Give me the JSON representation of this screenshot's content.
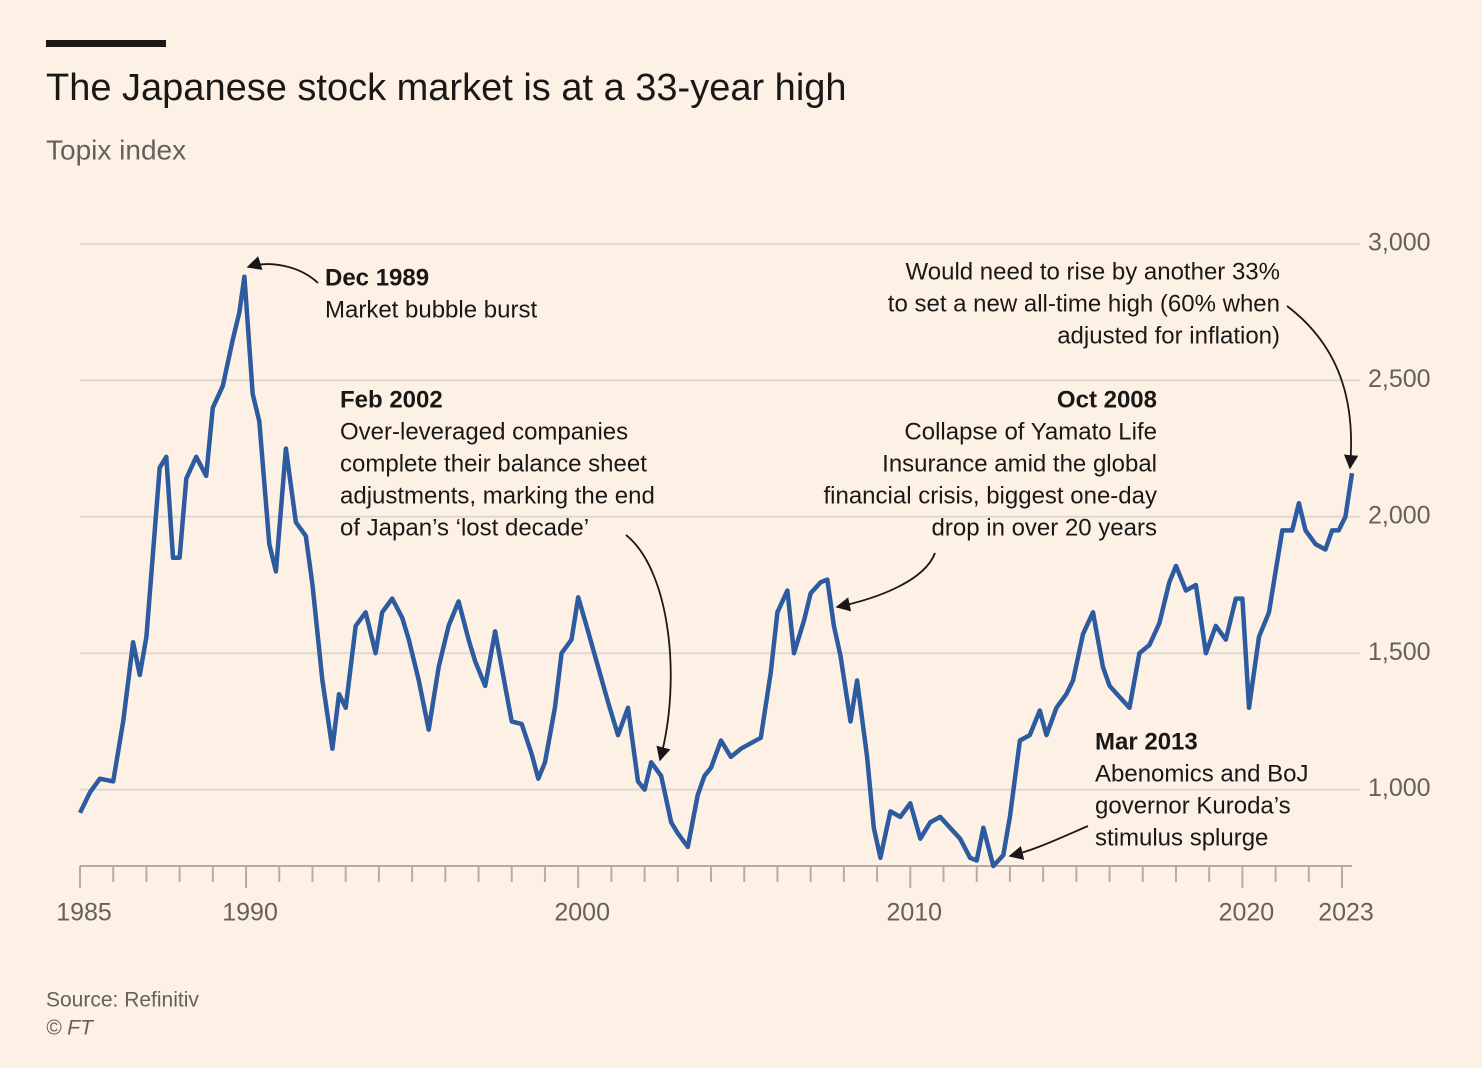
{
  "chart_data": {
    "type": "line",
    "title": "The Japanese stock market is at a 33-year high",
    "subtitle": "Topix index",
    "source": "Source: Refinitiv",
    "credit": "© FT",
    "xlim": [
      1985,
      2023.3
    ],
    "ylim": [
      720,
      3000
    ],
    "xticks": [
      1985,
      1990,
      2000,
      2010,
      2020,
      2023
    ],
    "xminorticks": [
      1986,
      1987,
      1988,
      1989,
      1991,
      1992,
      1993,
      1994,
      1995,
      1996,
      1997,
      1998,
      1999,
      2001,
      2002,
      2003,
      2004,
      2005,
      2006,
      2007,
      2008,
      2009,
      2011,
      2012,
      2013,
      2014,
      2015,
      2016,
      2017,
      2018,
      2019,
      2021,
      2022
    ],
    "yticks": [
      {
        "value": 1000,
        "label": "1,000"
      },
      {
        "value": 1500,
        "label": "1,500"
      },
      {
        "value": 2000,
        "label": "2,000"
      },
      {
        "value": 2500,
        "label": "2,500"
      },
      {
        "value": 3000,
        "label": "3,000"
      }
    ],
    "grid": true,
    "series": [
      {
        "name": "Topix",
        "color": "#2d5b9f",
        "x": [
          1985.0,
          1985.3,
          1985.6,
          1986.0,
          1986.3,
          1986.6,
          1986.8,
          1987.0,
          1987.4,
          1987.6,
          1987.8,
          1988.0,
          1988.2,
          1988.5,
          1988.8,
          1989.0,
          1989.3,
          1989.6,
          1989.8,
          1989.95,
          1990.2,
          1990.4,
          1990.7,
          1990.9,
          1991.2,
          1991.5,
          1991.8,
          1992.0,
          1992.3,
          1992.6,
          1992.8,
          1993.0,
          1993.3,
          1993.6,
          1993.9,
          1994.1,
          1994.4,
          1994.7,
          1994.9,
          1995.2,
          1995.5,
          1995.8,
          1996.1,
          1996.4,
          1996.7,
          1996.9,
          1997.2,
          1997.5,
          1997.8,
          1998.0,
          1998.3,
          1998.6,
          1998.8,
          1999.0,
          1999.3,
          1999.5,
          1999.8,
          2000.0,
          2000.3,
          2000.6,
          2000.9,
          2001.2,
          2001.5,
          2001.8,
          2002.0,
          2002.2,
          2002.5,
          2002.8,
          2003.0,
          2003.3,
          2003.6,
          2003.8,
          2004.0,
          2004.3,
          2004.6,
          2004.9,
          2005.2,
          2005.5,
          2005.8,
          2006.0,
          2006.3,
          2006.5,
          2006.8,
          2007.0,
          2007.3,
          2007.5,
          2007.7,
          2007.9,
          2008.2,
          2008.4,
          2008.7,
          2008.9,
          2009.1,
          2009.4,
          2009.7,
          2010.0,
          2010.3,
          2010.6,
          2010.9,
          2011.2,
          2011.5,
          2011.8,
          2012.0,
          2012.2,
          2012.5,
          2012.8,
          2013.0,
          2013.3,
          2013.6,
          2013.9,
          2014.1,
          2014.4,
          2014.7,
          2014.9,
          2015.2,
          2015.5,
          2015.8,
          2016.0,
          2016.3,
          2016.6,
          2016.9,
          2017.2,
          2017.5,
          2017.8,
          2018.0,
          2018.3,
          2018.6,
          2018.9,
          2019.2,
          2019.5,
          2019.8,
          2020.0,
          2020.2,
          2020.5,
          2020.8,
          2021.0,
          2021.2,
          2021.5,
          2021.7,
          2021.9,
          2022.2,
          2022.5,
          2022.7,
          2022.9,
          2023.1,
          2023.3
        ],
        "values": [
          915,
          990,
          1040,
          1030,
          1250,
          1540,
          1420,
          1560,
          2180,
          2220,
          1850,
          1850,
          2140,
          2220,
          2150,
          2400,
          2480,
          2650,
          2750,
          2880,
          2450,
          2350,
          1900,
          1800,
          2250,
          1980,
          1930,
          1750,
          1400,
          1150,
          1350,
          1300,
          1600,
          1650,
          1500,
          1650,
          1700,
          1630,
          1550,
          1400,
          1220,
          1450,
          1600,
          1690,
          1550,
          1470,
          1380,
          1580,
          1380,
          1250,
          1240,
          1130,
          1040,
          1100,
          1300,
          1500,
          1550,
          1705,
          1580,
          1450,
          1320,
          1200,
          1300,
          1030,
          1000,
          1100,
          1050,
          880,
          840,
          790,
          980,
          1050,
          1080,
          1180,
          1120,
          1150,
          1170,
          1190,
          1430,
          1650,
          1730,
          1500,
          1620,
          1720,
          1760,
          1770,
          1600,
          1490,
          1250,
          1400,
          1120,
          860,
          750,
          920,
          900,
          950,
          820,
          880,
          900,
          860,
          820,
          750,
          740,
          860,
          720,
          760,
          900,
          1180,
          1200,
          1290,
          1200,
          1300,
          1350,
          1400,
          1570,
          1650,
          1450,
          1380,
          1340,
          1300,
          1500,
          1530,
          1610,
          1760,
          1820,
          1730,
          1750,
          1500,
          1600,
          1550,
          1700,
          1700,
          1300,
          1560,
          1650,
          1800,
          1950,
          1950,
          2050,
          1950,
          1900,
          1880,
          1950,
          1950,
          2000,
          2160
        ]
      }
    ],
    "annotations": [
      {
        "title": "Dec 1989",
        "lines": [
          "Market bubble burst"
        ]
      },
      {
        "title": "Feb 2002",
        "lines": [
          "Over-leveraged companies",
          "complete their balance sheet",
          "adjustments, marking the end",
          "of Japan’s ‘lost decade’"
        ]
      },
      {
        "title": "Oct 2008",
        "lines": [
          "Collapse of Yamato Life",
          "Insurance amid the global",
          "financial crisis, biggest one-day",
          "drop in over 20 years"
        ]
      },
      {
        "title": "Mar 2013",
        "lines": [
          "Abenomics and BoJ",
          "governor Kuroda’s",
          "stimulus splurge"
        ]
      },
      {
        "lines": [
          "Would need to rise by another 33%",
          "to set a new all-time high (60% when",
          "adjusted for inflation)"
        ]
      }
    ]
  }
}
